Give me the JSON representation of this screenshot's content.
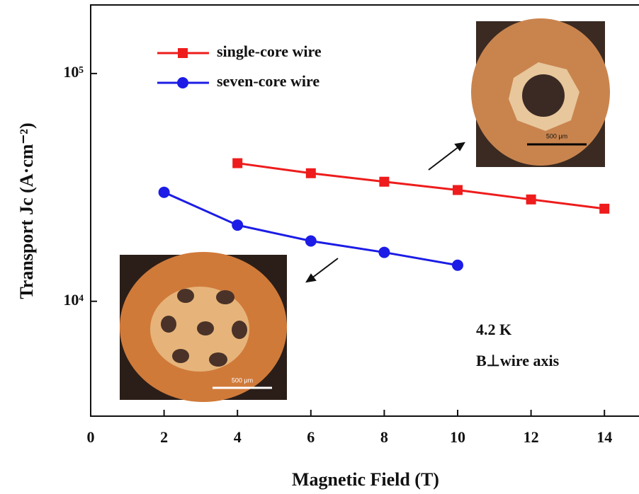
{
  "chart_data": {
    "type": "line",
    "x_label": "Magnetic Field (T)",
    "y_label": "Transport Jc (A·cm⁻²)",
    "xlim": [
      0,
      15
    ],
    "xticks": [
      0,
      2,
      4,
      6,
      8,
      10,
      12,
      14
    ],
    "ylim": [
      3000,
      200000
    ],
    "log_y": true,
    "yticks": [
      {
        "value": 10000,
        "label": "10⁴"
      },
      {
        "value": 100000,
        "label": "10⁵"
      }
    ],
    "legend": "upper left",
    "series": [
      {
        "name": "single-core wire",
        "color": "#ee1c1c",
        "marker": "square",
        "x": [
          4,
          6,
          8,
          10,
          12,
          14
        ],
        "values": [
          40400,
          36500,
          33500,
          30800,
          28000,
          25500
        ]
      },
      {
        "name": "seven-core wire",
        "color": "#1c1ce6",
        "marker": "circle",
        "x": [
          2,
          4,
          6,
          8,
          10
        ],
        "values": [
          30100,
          21600,
          18400,
          16400,
          14400
        ]
      }
    ],
    "annotations": [
      "4.2 K",
      "B⊥wire axis",
      "500 μm",
      "500 μm"
    ]
  }
}
